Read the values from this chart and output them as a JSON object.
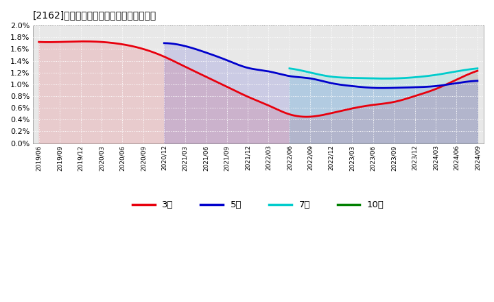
{
  "title": "[2162]　経常利益マージンの平均値の推移",
  "background_color": "#ffffff",
  "plot_background_color": "#e8e8e8",
  "grid_color": "#ffffff",
  "ylim": [
    0.0,
    0.02
  ],
  "ytick_vals": [
    0.0,
    0.002,
    0.004,
    0.006,
    0.008,
    0.01,
    0.012,
    0.014,
    0.016,
    0.018,
    0.02
  ],
  "ytick_labels": [
    "0.0%",
    "0.2%",
    "0.4%",
    "0.6%",
    "0.8%",
    "1.0%",
    "1.2%",
    "1.4%",
    "1.6%",
    "1.8%",
    "2.0%"
  ],
  "xlabels": [
    "2019/06",
    "2019/09",
    "2019/12",
    "2020/03",
    "2020/06",
    "2020/09",
    "2020/12",
    "2021/03",
    "2021/06",
    "2021/09",
    "2021/12",
    "2022/03",
    "2022/06",
    "2022/09",
    "2022/12",
    "2023/03",
    "2023/06",
    "2023/09",
    "2023/12",
    "2024/03",
    "2024/06",
    "2024/09"
  ],
  "series": {
    "3年": {
      "color": "#e8000d",
      "linewidth": 2.0,
      "data": [
        0.0172,
        0.0172,
        0.0173,
        0.0172,
        0.0168,
        0.016,
        0.0147,
        0.013,
        0.0113,
        0.0096,
        0.0079,
        0.0064,
        0.0049,
        0.0045,
        0.0051,
        0.0059,
        0.0065,
        0.007,
        0.008,
        0.0092,
        0.0108,
        0.0123
      ]
    },
    "5年": {
      "color": "#0000cc",
      "linewidth": 2.0,
      "data": [
        null,
        null,
        null,
        null,
        null,
        null,
        0.017,
        0.0165,
        0.0154,
        0.0141,
        0.0128,
        0.0122,
        0.0114,
        0.011,
        0.0102,
        0.0097,
        0.0094,
        0.0094,
        0.0095,
        0.0097,
        0.0102,
        0.0106
      ]
    },
    "7年": {
      "color": "#00cccc",
      "linewidth": 2.0,
      "data": [
        null,
        null,
        null,
        null,
        null,
        null,
        null,
        null,
        null,
        null,
        null,
        null,
        0.0127,
        0.012,
        0.0113,
        0.0111,
        0.011,
        0.011,
        0.0112,
        0.0116,
        0.0122,
        0.0127
      ]
    },
    "10年": {
      "color": "#008000",
      "linewidth": 2.0,
      "data": [
        null,
        null,
        null,
        null,
        null,
        null,
        null,
        null,
        null,
        null,
        null,
        null,
        null,
        null,
        null,
        null,
        null,
        null,
        null,
        null,
        null,
        null
      ]
    }
  },
  "legend_labels": [
    "3年",
    "5年",
    "7年",
    "10年"
  ],
  "legend_colors": [
    "#e8000d",
    "#0000cc",
    "#00cccc",
    "#008000"
  ]
}
